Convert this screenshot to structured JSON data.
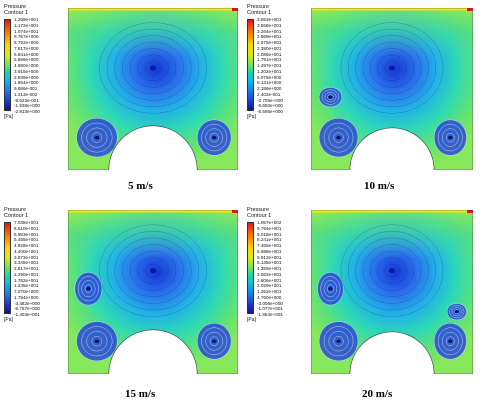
{
  "panels": [
    {
      "caption": "5 m/s",
      "legend_title_1": "Pressure",
      "legend_title_2": "Contour 1",
      "unit": "[Pa]",
      "labels": [
        "1.269e+001",
        "1.172e+001",
        "1.074e+001",
        "9.767e+000",
        "8.792e+000",
        "7.817e+000",
        "6.841e+000",
        "5.866e+000",
        "4.890e+000",
        "3.915e+000",
        "2.939e+000",
        "1.964e+000",
        "9.886e-001",
        "1.313e-002",
        "-9.623e-001",
        "-1.938e+000",
        "-2.913e+000"
      ]
    },
    {
      "caption": "10 m/s",
      "legend_title_1": "Pressure",
      "legend_title_2": "Contour 1",
      "unit": "[Pa]",
      "labels": [
        "3.853e+001",
        "3.558e+001",
        "3.264e+001",
        "2.969e+001",
        "2.675e+001",
        "2.380e+001",
        "2.086e+001",
        "1.791e+001",
        "1.497e+001",
        "1.202e+001",
        "9.078e+000",
        "6.131e+000",
        "3.186e+000",
        "2.402e-001",
        "-2.705e+000",
        "-5.650e+000",
        "-8.595e+000"
      ]
    },
    {
      "caption": "15 m/s",
      "legend_title_1": "Pressure",
      "legend_title_2": "Contour 1",
      "unit": "[Pa]",
      "labels": [
        "7.038e+001",
        "6.510e+001",
        "5.983e+001",
        "5.455e+001",
        "4.928e+001",
        "4.400e+001",
        "3.873e+001",
        "3.345e+001",
        "2.817e+001",
        "2.290e+001",
        "1.762e+001",
        "1.235e+001",
        "7.070e+000",
        "1.794e+000",
        "-3.482e+000",
        "-8.757e+000",
        "-1.403e+001"
      ]
    },
    {
      "caption": "20 m/s",
      "legend_title_1": "Pressure",
      "legend_title_2": "Contour 1",
      "unit": "[Pa]",
      "labels": [
        "1.057e+002",
        "9.794e+001",
        "9.018e+001",
        "8.241e+001",
        "7.465e+001",
        "6.688e+001",
        "5.912e+001",
        "5.135e+001",
        "4.359e+001",
        "3.582e+001",
        "2.806e+001",
        "2.029e+001",
        "1.252e+001",
        "4.760e+000",
        "-3.006e+000",
        "-1.077e+001",
        "-1.854e+001"
      ]
    }
  ]
}
